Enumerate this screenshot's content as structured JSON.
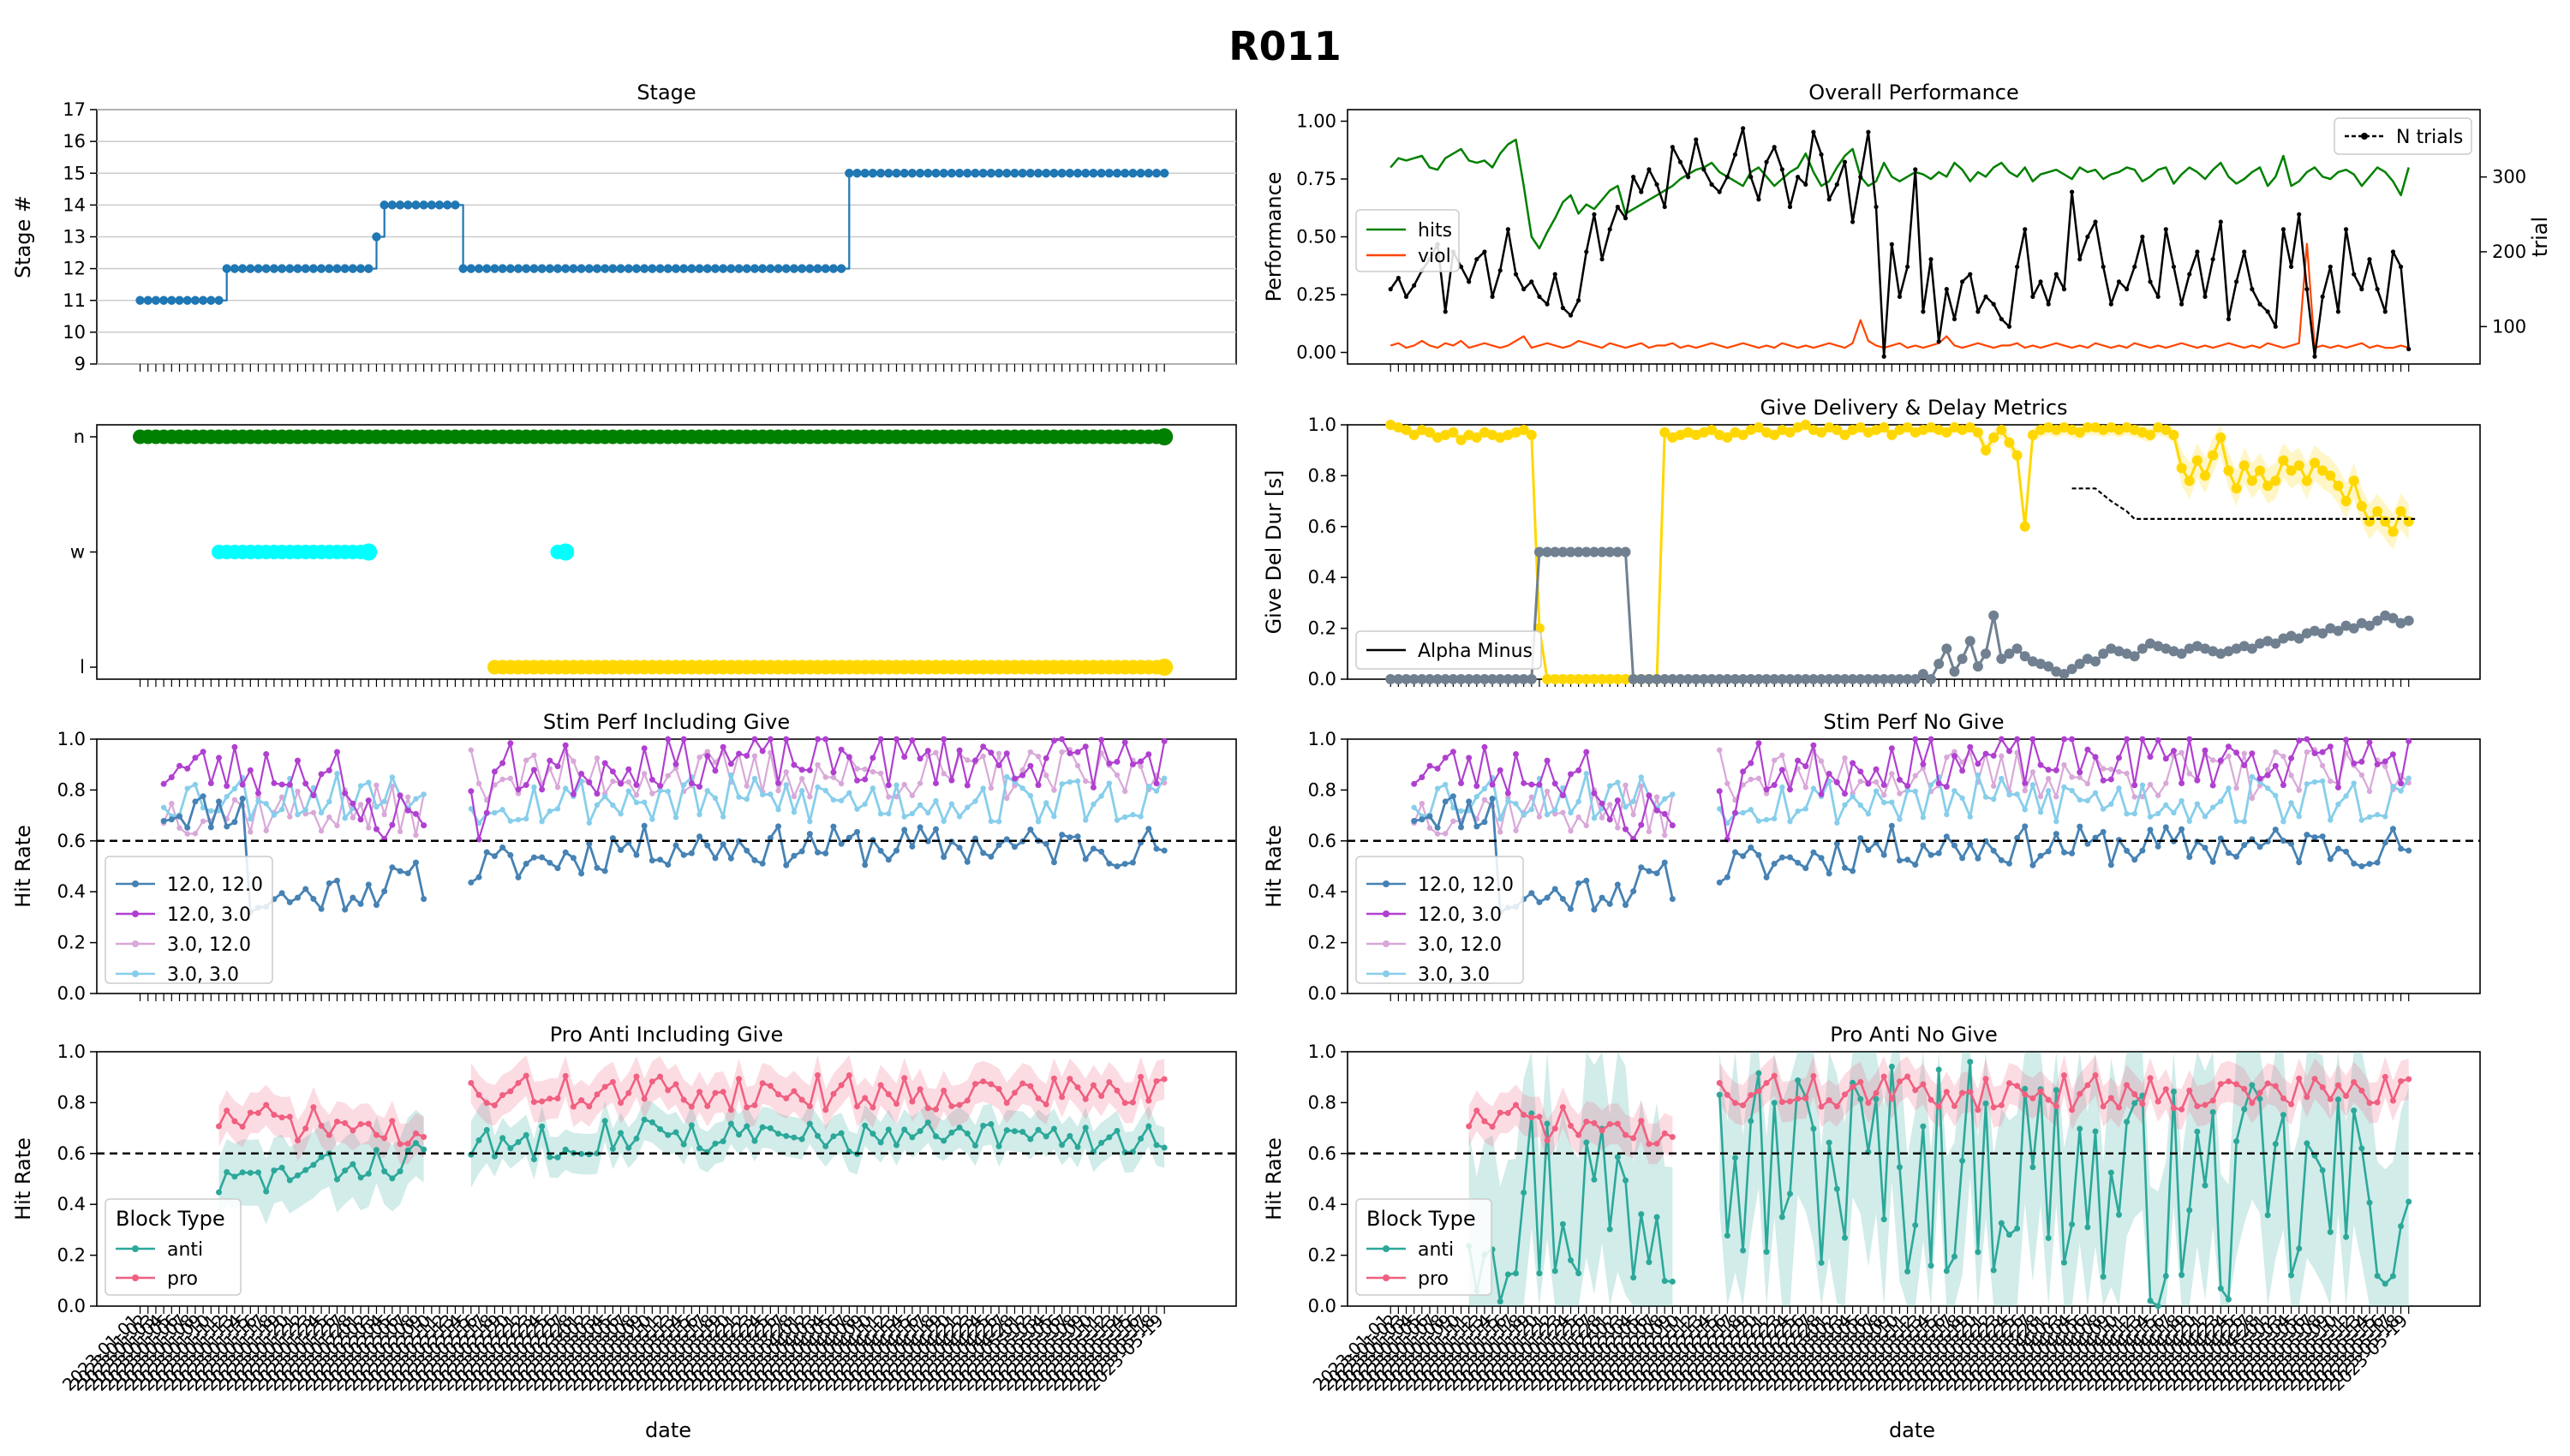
{
  "figure": {
    "title": "R011",
    "xlabel": "date"
  },
  "colors": {
    "stage": "#1f77b4",
    "hits": "#008000",
    "viol": "#ff4500",
    "ntrials": "#000000",
    "n": "#008000",
    "w": "#00ffff",
    "l": "#ffd700",
    "deliv": "#ffd700",
    "delay": "#708090",
    "s1": "#4682b4",
    "s2": "#b040d0",
    "s3": "#d8a8d8",
    "s4": "#87ceeb",
    "anti": "#2ca89a",
    "pro": "#f06080"
  },
  "panels": {
    "stage": {
      "title": "Stage",
      "ylabel": "Stage #"
    },
    "overall": {
      "title": "Overall Performance",
      "ylabel": "Performance",
      "y2label": "trial"
    },
    "nwl": {
      "title": ""
    },
    "give": {
      "title": "Give Delivery & Delay Metrics",
      "ylabel": "Give Del Dur [s]"
    },
    "stim_give": {
      "title": "Stim Perf Including Give",
      "ylabel": "Hit Rate"
    },
    "stim_nogive": {
      "title": "Stim Perf No Give",
      "ylabel": "Hit Rate"
    },
    "pa_give": {
      "title": "Pro Anti Including Give",
      "ylabel": "Hit Rate"
    },
    "pa_nogive": {
      "title": "Pro Anti No Give",
      "ylabel": "Hit Rate"
    }
  },
  "legends": {
    "overall_left": [
      "hits",
      "viol"
    ],
    "overall_right": [
      "N trials"
    ],
    "give": [
      "Alpha Minus"
    ],
    "stim": [
      "12.0, 12.0",
      "12.0, 3.0",
      "3.0, 12.0",
      "3.0, 3.0"
    ],
    "pa_title": "Block Type",
    "pa": [
      "anti",
      "pro"
    ]
  },
  "chart_data": [
    {
      "name": "Stage",
      "type": "line",
      "n_sessions": 131,
      "ylim": [
        9,
        17
      ],
      "yticks": [
        9,
        10,
        11,
        12,
        13,
        14,
        15,
        16,
        17
      ],
      "grid": "y",
      "stage_segments": [
        {
          "from": 0,
          "to": 11,
          "value": 11
        },
        {
          "from": 11,
          "to": 30,
          "value": 12
        },
        {
          "from": 30,
          "to": 31,
          "value": 13
        },
        {
          "from": 31,
          "to": 41,
          "value": 14
        },
        {
          "from": 41,
          "to": 90,
          "value": 12
        },
        {
          "from": 90,
          "to": 131,
          "value": 15
        }
      ]
    },
    {
      "name": "Overall Performance",
      "type": "line",
      "n_sessions": 131,
      "ylim": [
        -0.05,
        1.05
      ],
      "yticks": [
        0.0,
        0.25,
        0.5,
        0.75,
        1.0
      ],
      "y2lim": [
        50,
        390
      ],
      "y2ticks": [
        100,
        200,
        300
      ],
      "series": [
        {
          "name": "hits",
          "values": [
            0.8,
            0.84,
            0.83,
            0.84,
            0.85,
            0.8,
            0.79,
            0.84,
            0.86,
            0.88,
            0.83,
            0.82,
            0.83,
            0.8,
            0.86,
            0.9,
            0.92,
            0.72,
            0.5,
            0.45,
            0.52,
            0.58,
            0.65,
            0.68,
            0.6,
            0.64,
            0.62,
            0.66,
            0.7,
            0.72,
            0.6,
            0.62,
            0.64,
            0.66,
            0.68,
            0.7,
            0.72,
            0.75,
            0.77,
            0.79,
            0.8,
            0.82,
            0.78,
            0.76,
            0.74,
            0.72,
            0.78,
            0.8,
            0.76,
            0.72,
            0.75,
            0.78,
            0.8,
            0.86,
            0.78,
            0.72,
            0.74,
            0.8,
            0.85,
            0.88,
            0.76,
            0.72,
            0.74,
            0.82,
            0.76,
            0.74,
            0.76,
            0.78,
            0.77,
            0.75,
            0.78,
            0.76,
            0.82,
            0.79,
            0.74,
            0.78,
            0.76,
            0.8,
            0.82,
            0.78,
            0.76,
            0.8,
            0.74,
            0.77,
            0.78,
            0.79,
            0.77,
            0.75,
            0.8,
            0.78,
            0.79,
            0.75,
            0.77,
            0.78,
            0.8,
            0.79,
            0.74,
            0.76,
            0.79,
            0.8,
            0.73,
            0.77,
            0.8,
            0.78,
            0.75,
            0.79,
            0.82,
            0.76,
            0.73,
            0.75,
            0.78,
            0.8,
            0.72,
            0.76,
            0.85,
            0.72,
            0.74,
            0.78,
            0.8,
            0.76,
            0.75,
            0.78,
            0.79,
            0.77,
            0.72,
            0.76,
            0.8,
            0.78,
            0.74,
            0.68,
            0.8
          ]
        },
        {
          "name": "viol",
          "values": [
            0.03,
            0.04,
            0.02,
            0.03,
            0.05,
            0.03,
            0.02,
            0.04,
            0.03,
            0.05,
            0.02,
            0.03,
            0.04,
            0.03,
            0.02,
            0.03,
            0.05,
            0.07,
            0.02,
            0.03,
            0.04,
            0.03,
            0.02,
            0.03,
            0.05,
            0.04,
            0.03,
            0.02,
            0.04,
            0.03,
            0.02,
            0.03,
            0.04,
            0.02,
            0.03,
            0.03,
            0.04,
            0.02,
            0.03,
            0.02,
            0.03,
            0.04,
            0.03,
            0.02,
            0.03,
            0.04,
            0.03,
            0.02,
            0.03,
            0.02,
            0.04,
            0.03,
            0.02,
            0.03,
            0.02,
            0.03,
            0.04,
            0.03,
            0.02,
            0.04,
            0.14,
            0.05,
            0.03,
            0.02,
            0.03,
            0.04,
            0.02,
            0.03,
            0.02,
            0.03,
            0.04,
            0.07,
            0.03,
            0.02,
            0.03,
            0.04,
            0.03,
            0.02,
            0.03,
            0.03,
            0.04,
            0.02,
            0.03,
            0.02,
            0.03,
            0.04,
            0.03,
            0.02,
            0.03,
            0.02,
            0.04,
            0.03,
            0.02,
            0.03,
            0.02,
            0.04,
            0.03,
            0.02,
            0.03,
            0.02,
            0.03,
            0.04,
            0.03,
            0.02,
            0.03,
            0.02,
            0.03,
            0.04,
            0.03,
            0.02,
            0.03,
            0.02,
            0.04,
            0.03,
            0.02,
            0.03,
            0.04,
            0.47,
            0.02,
            0.03,
            0.02,
            0.03,
            0.02,
            0.03,
            0.04,
            0.02,
            0.03,
            0.02,
            0.02,
            0.03,
            0.02
          ]
        },
        {
          "name": "N trials",
          "axis": "right",
          "values": [
            160,
            180,
            165,
            205,
            175,
            190,
            210,
            120,
            200,
            180,
            160,
            190,
            200,
            140,
            175,
            230,
            170,
            150,
            160,
            140,
            130,
            170,
            125,
            115,
            135,
            200,
            250,
            190,
            230,
            260,
            245,
            300,
            280,
            310,
            290,
            260,
            340,
            320,
            300,
            350,
            310,
            290,
            280,
            300,
            330,
            365,
            300,
            270,
            320,
            340,
            310,
            260,
            300,
            290,
            360,
            330,
            270,
            290,
            320,
            240,
            300,
            360,
            260,
            60,
            210,
            140,
            180,
            310,
            120,
            190,
            80,
            150,
            110,
            160,
            170,
            120,
            140,
            130,
            110,
            100,
            180,
            230,
            140,
            160,
            130,
            170,
            150,
            280,
            190,
            220,
            240,
            180,
            130,
            160,
            150,
            180,
            220,
            160,
            140,
            230,
            180,
            130,
            170,
            200,
            140,
            190,
            240,
            110,
            160,
            200,
            150,
            130,
            120,
            100,
            230,
            180,
            250,
            150,
            60,
            140,
            180,
            120,
            230,
            170,
            150,
            190,
            150,
            120,
            200,
            180,
            70
          ]
        }
      ],
      "ntrials_full": [
        150,
        165,
        140,
        155,
        175,
        190,
        210,
        120,
        200,
        180,
        160,
        190,
        200,
        140,
        175,
        230,
        170,
        150,
        160,
        140,
        130,
        170,
        125,
        115,
        135,
        200,
        250,
        190,
        230,
        260,
        245,
        300,
        280,
        310,
        290,
        260,
        340,
        320,
        300,
        350,
        310,
        290,
        280,
        300,
        330,
        365,
        300,
        270,
        320,
        340,
        310,
        260,
        300,
        290,
        360,
        330,
        270,
        290,
        320,
        240,
        300,
        360,
        260,
        60,
        210,
        140,
        180,
        310,
        120,
        190,
        80,
        150,
        110,
        160,
        170,
        120,
        140,
        130,
        110,
        100,
        180,
        230,
        140,
        160,
        130,
        170,
        150,
        280,
        190,
        220,
        240,
        180,
        130,
        160,
        150,
        180,
        220,
        160,
        140,
        230,
        180,
        130,
        170,
        200,
        140,
        190,
        240,
        110,
        160,
        200,
        150,
        130,
        120,
        100,
        230,
        180,
        250,
        150,
        60,
        140,
        180,
        120,
        230,
        170,
        150,
        190,
        150,
        120,
        200,
        180,
        70
      ]
    },
    {
      "name": "NWL",
      "type": "scatter",
      "n_sessions": 131,
      "categories": [
        "l",
        "w",
        "n"
      ],
      "points": [
        {
          "category": "n",
          "from": 0,
          "to": 131
        },
        {
          "category": "w",
          "from": 10,
          "to": 30
        },
        {
          "category": "w",
          "from": 53,
          "to": 55
        },
        {
          "category": "l",
          "from": 45,
          "to": 131
        }
      ]
    },
    {
      "name": "Give Delivery & Delay Metrics",
      "type": "line",
      "n_sessions": 131,
      "ylim": [
        0,
        1
      ],
      "yticks": [
        0.0,
        0.2,
        0.4,
        0.6,
        0.8,
        1.0
      ],
      "series": [
        {
          "name": "delivery",
          "values": [
            1.0,
            0.99,
            0.98,
            0.96,
            0.98,
            0.97,
            0.95,
            0.96,
            0.97,
            0.94,
            0.96,
            0.95,
            0.97,
            0.96,
            0.95,
            0.96,
            0.97,
            0.98,
            0.96,
            0.2,
            0.0,
            0.0,
            0.0,
            0.0,
            0.0,
            0.0,
            0.0,
            0.0,
            0.0,
            0.0,
            0.0,
            0.0,
            0.0,
            0.0,
            0.0,
            0.97,
            0.95,
            0.96,
            0.97,
            0.96,
            0.97,
            0.98,
            0.96,
            0.95,
            0.97,
            0.96,
            0.98,
            0.99,
            0.97,
            0.96,
            0.98,
            0.97,
            0.99,
            1.0,
            0.98,
            0.97,
            0.99,
            0.98,
            0.96,
            0.98,
            0.99,
            0.97,
            0.98,
            0.99,
            0.96,
            0.98,
            0.99,
            0.97,
            0.98,
            0.99,
            0.98,
            0.97,
            0.99,
            0.98,
            0.99,
            0.97,
            0.9,
            0.95,
            0.98,
            0.93,
            0.88,
            0.6,
            0.96,
            0.98,
            0.99,
            0.98,
            0.99,
            0.98,
            0.97,
            0.99,
            0.99,
            0.98,
            0.99,
            0.98,
            0.99,
            0.98,
            0.97,
            0.96,
            0.99,
            0.98,
            0.96,
            0.83,
            0.78,
            0.86,
            0.8,
            0.88,
            0.95,
            0.82,
            0.75,
            0.84,
            0.78,
            0.82,
            0.76,
            0.78,
            0.86,
            0.82,
            0.84,
            0.78,
            0.85,
            0.82,
            0.8,
            0.76,
            0.7,
            0.78,
            0.68,
            0.62,
            0.66,
            0.62,
            0.58,
            0.66,
            0.62
          ]
        },
        {
          "name": "delay",
          "values": [
            0.0,
            0.0,
            0.0,
            0.0,
            0.0,
            0.0,
            0.0,
            0.0,
            0.0,
            0.0,
            0.0,
            0.0,
            0.0,
            0.0,
            0.0,
            0.0,
            0.0,
            0.0,
            0.0,
            0.5,
            0.5,
            0.5,
            0.5,
            0.5,
            0.5,
            0.5,
            0.5,
            0.5,
            0.5,
            0.5,
            0.5,
            0.0,
            0.0,
            0.0,
            0.0,
            0.0,
            0.0,
            0.0,
            0.0,
            0.0,
            0.0,
            0.0,
            0.0,
            0.0,
            0.0,
            0.0,
            0.0,
            0.0,
            0.0,
            0.0,
            0.0,
            0.0,
            0.0,
            0.0,
            0.0,
            0.0,
            0.0,
            0.0,
            0.0,
            0.0,
            0.0,
            0.0,
            0.0,
            0.0,
            0.0,
            0.0,
            0.0,
            0.0,
            0.02,
            0.0,
            0.06,
            0.12,
            0.03,
            0.08,
            0.15,
            0.05,
            0.1,
            0.25,
            0.08,
            0.1,
            0.12,
            0.09,
            0.07,
            0.06,
            0.05,
            0.03,
            0.02,
            0.04,
            0.06,
            0.08,
            0.07,
            0.1,
            0.12,
            0.11,
            0.1,
            0.09,
            0.12,
            0.14,
            0.13,
            0.12,
            0.11,
            0.1,
            0.12,
            0.13,
            0.12,
            0.11,
            0.1,
            0.11,
            0.12,
            0.13,
            0.12,
            0.14,
            0.15,
            0.14,
            0.16,
            0.17,
            0.16,
            0.18,
            0.19,
            0.18,
            0.2,
            0.19,
            0.21,
            0.2,
            0.22,
            0.21,
            0.23,
            0.25,
            0.24,
            0.22,
            0.23
          ]
        },
        {
          "name": "Alpha Minus",
          "values": [
            [
              87,
              0.75
            ],
            [
              90,
              0.75
            ],
            [
              92,
              0.7
            ],
            [
              94,
              0.66
            ],
            [
              95,
              0.63
            ],
            [
              131,
              0.63
            ]
          ]
        }
      ]
    },
    {
      "name": "Stim Perf Including Give",
      "type": "line",
      "n_sessions": 131,
      "ylim": [
        0,
        1
      ],
      "yticks": [
        0.0,
        0.2,
        0.4,
        0.6,
        0.8,
        1.0
      ],
      "hline": 0.6
    },
    {
      "name": "Stim Perf No Give",
      "type": "line",
      "n_sessions": 131,
      "ylim": [
        0,
        1
      ],
      "yticks": [
        0.0,
        0.2,
        0.4,
        0.6,
        0.8,
        1.0
      ],
      "hline": 0.6
    },
    {
      "name": "Pro Anti Including Give",
      "type": "line",
      "n_sessions": 131,
      "ylim": [
        0,
        1
      ],
      "yticks": [
        0.0,
        0.2,
        0.4,
        0.6,
        0.8,
        1.0
      ],
      "hline": 0.6
    },
    {
      "name": "Pro Anti No Give",
      "type": "line",
      "n_sessions": 131,
      "ylim": [
        0,
        1
      ],
      "yticks": [
        0.0,
        0.2,
        0.4,
        0.6,
        0.8,
        1.0
      ],
      "hline": 0.6
    }
  ]
}
